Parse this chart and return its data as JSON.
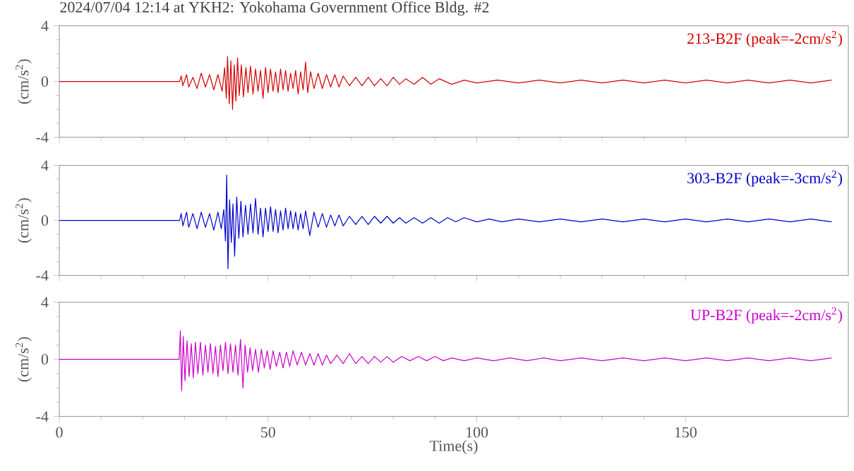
{
  "chart_data": [
    {
      "type": "line",
      "title": "2024/07/04 12:14 at YKH2: Yokohama Government Office Bldg. #2",
      "ylabel": "(cm/s$^{2}$)",
      "xlim": [
        0,
        189
      ],
      "xticks": [
        0,
        50,
        100,
        150
      ],
      "ylim": [
        -4,
        4
      ],
      "yticks": [
        -4,
        0,
        4
      ],
      "tick_labels": "y",
      "series": [
        {
          "name": "213-B2F (peak=-2cm/s$^{2}$)",
          "color": "#d40000",
          "x": [
            0,
            28.8,
            29.2,
            29.6,
            30.5,
            31,
            32,
            33,
            34,
            35,
            36,
            37,
            38,
            39,
            39.6,
            40.0,
            40.3,
            40.7,
            41.1,
            41.5,
            41.9,
            42.3,
            42.7,
            43.1,
            43.6,
            44.1,
            44.7,
            45.2,
            45.8,
            46.4,
            47,
            47.6,
            48.2,
            48.8,
            49.4,
            50,
            50.6,
            51.2,
            51.8,
            52.4,
            53,
            53.6,
            54.2,
            54.8,
            55.4,
            56,
            56.6,
            57.2,
            57.8,
            58.4,
            59.0,
            59.5,
            60.2,
            61,
            62,
            63,
            64,
            65,
            66,
            67,
            68,
            69.5,
            71,
            72.5,
            74,
            75.5,
            77,
            78.5,
            80,
            81.5,
            83,
            85,
            87,
            89,
            91,
            94,
            97,
            100,
            105,
            110,
            115,
            120,
            125,
            130,
            135,
            140,
            145,
            150,
            155,
            160,
            165,
            170,
            175,
            180,
            185
          ],
          "values": [
            0,
            0,
            0.4,
            -0.3,
            0.5,
            -0.4,
            0.3,
            -0.5,
            0.6,
            -0.4,
            0.5,
            -0.6,
            0.5,
            -0.7,
            1.0,
            -1.2,
            1.8,
            -1.6,
            1.5,
            -2.0,
            1.2,
            -1.4,
            1.7,
            -1.0,
            1.2,
            -1.1,
            1.0,
            -0.8,
            1.1,
            -0.9,
            0.9,
            -0.7,
            0.8,
            -1.2,
            1.0,
            -0.8,
            0.9,
            -0.7,
            0.7,
            -0.8,
            0.9,
            -0.6,
            0.8,
            -0.7,
            0.6,
            -0.5,
            0.8,
            -0.9,
            0.7,
            -0.6,
            1.4,
            -0.8,
            0.7,
            -0.5,
            0.6,
            -0.5,
            0.5,
            -0.4,
            0.5,
            -0.4,
            0.4,
            -0.3,
            0.3,
            -0.3,
            0.3,
            -0.3,
            0.2,
            -0.3,
            0.3,
            -0.2,
            0.2,
            -0.2,
            0.3,
            -0.2,
            0.2,
            -0.2,
            0.1,
            -0.1,
            0.1,
            -0.1,
            0.1,
            -0.1,
            0.1,
            -0.1,
            0.1,
            -0.1,
            0.1,
            -0.1,
            0.1,
            -0.1,
            0.1,
            -0.1,
            0.1,
            -0.1,
            0.1
          ]
        }
      ]
    },
    {
      "type": "line",
      "ylabel": "(cm/s$^{2}$)",
      "xlim": [
        0,
        189
      ],
      "xticks": [
        0,
        50,
        100,
        150
      ],
      "ylim": [
        -4,
        4
      ],
      "yticks": [
        -4,
        0,
        4
      ],
      "tick_labels": "y",
      "series": [
        {
          "name": "303-B2F (peak=-3cm/s$^{2}$)",
          "color": "#0000cc",
          "x": [
            0,
            28.8,
            29.2,
            29.6,
            30.5,
            31,
            32,
            33,
            34,
            35,
            36,
            37,
            38,
            38.8,
            39.4,
            39.8,
            40.1,
            40.4,
            40.8,
            41.2,
            41.6,
            42.0,
            42.5,
            43,
            43.5,
            44,
            44.6,
            45.2,
            45.8,
            46.4,
            47,
            47.6,
            48.2,
            48.8,
            49.4,
            50,
            50.6,
            51.2,
            51.8,
            52.4,
            53,
            53.6,
            54.2,
            54.8,
            55.4,
            56,
            56.6,
            57.2,
            57.8,
            58.4,
            59,
            60,
            61,
            62,
            63,
            64,
            65,
            66,
            67,
            68,
            69.5,
            71,
            72.5,
            74,
            75.5,
            77,
            78.5,
            80,
            81.5,
            83,
            85,
            87,
            89,
            91,
            93,
            95,
            97,
            100,
            103,
            106,
            110,
            115,
            120,
            125,
            130,
            135,
            140,
            145,
            150,
            155,
            160,
            165,
            170,
            175,
            180,
            185
          ],
          "values": [
            0,
            0,
            0.5,
            -0.4,
            0.6,
            -0.5,
            0.5,
            -0.6,
            0.6,
            -0.5,
            0.5,
            -0.7,
            0.6,
            -0.6,
            0.8,
            -1.5,
            3.3,
            -3.5,
            1.5,
            -1.6,
            1.2,
            -2.6,
            1.7,
            -1.3,
            1.4,
            -1.2,
            1.1,
            -1.0,
            1.2,
            -0.9,
            1.6,
            -1.0,
            0.9,
            -1.2,
            0.9,
            -0.8,
            1.0,
            -0.8,
            0.8,
            -0.9,
            0.7,
            -0.7,
            0.9,
            -0.6,
            0.7,
            -0.6,
            0.6,
            -0.7,
            0.5,
            -0.6,
            0.7,
            -1.1,
            0.6,
            -0.5,
            0.5,
            -0.5,
            0.4,
            -0.4,
            0.4,
            -0.4,
            0.3,
            -0.3,
            0.3,
            -0.3,
            0.3,
            -0.2,
            0.3,
            -0.2,
            0.2,
            -0.2,
            0.2,
            -0.2,
            0.2,
            -0.2,
            0.2,
            -0.1,
            0.2,
            -0.1,
            0.1,
            -0.1,
            0.1,
            -0.1,
            0.1,
            -0.1,
            0.1,
            -0.1,
            0.1,
            -0.1,
            0.1,
            -0.1,
            0.1,
            -0.1,
            0.1,
            -0.1,
            0.1,
            -0.1
          ]
        }
      ]
    },
    {
      "type": "line",
      "ylabel": "(cm/s$^{2}$)",
      "xlabel": "Time(s)",
      "xlim": [
        0,
        189
      ],
      "xticks": [
        0,
        50,
        100,
        150
      ],
      "ylim": [
        -4,
        4
      ],
      "yticks": [
        -4,
        0,
        4
      ],
      "series": [
        {
          "name": "UP-B2F (peak=-2cm/s$^{2}$)",
          "color": "#cc00cc",
          "x": [
            0,
            28.7,
            29.0,
            29.3,
            29.7,
            30.1,
            30.6,
            31.1,
            31.6,
            32.1,
            32.6,
            33.2,
            33.8,
            34.4,
            35,
            35.6,
            36.2,
            36.8,
            37.4,
            38,
            38.6,
            39.2,
            39.8,
            40.4,
            41,
            41.6,
            42.2,
            42.8,
            43.4,
            44,
            44.5,
            45.1,
            45.7,
            46.3,
            47,
            47.7,
            48.4,
            49.1,
            49.8,
            50.5,
            51.2,
            52,
            52.8,
            53.6,
            54.4,
            55.2,
            56,
            57,
            58,
            59,
            60,
            61,
            62,
            63,
            64,
            65,
            66.5,
            68,
            69.5,
            71,
            72.5,
            74,
            75.5,
            77,
            78.5,
            80,
            82,
            84,
            86,
            88,
            90,
            92,
            94,
            97,
            100,
            104,
            108,
            112,
            116,
            120,
            125,
            130,
            135,
            140,
            145,
            150,
            155,
            160,
            165,
            170,
            175,
            180,
            185
          ],
          "values": [
            0,
            0,
            2.0,
            -2.2,
            1.6,
            -1.5,
            1.3,
            -1.2,
            1.1,
            -1.3,
            1.2,
            -1.0,
            1.2,
            -1.1,
            1.0,
            -0.9,
            1.1,
            -1.0,
            0.9,
            -1.2,
            1.0,
            -0.8,
            1.2,
            -1.0,
            1.1,
            -0.9,
            1.0,
            -1.1,
            1.4,
            -2.0,
            1.0,
            -0.9,
            0.8,
            -0.8,
            0.7,
            -0.9,
            0.7,
            -0.6,
            0.6,
            -0.7,
            0.6,
            -0.5,
            0.5,
            -0.6,
            0.5,
            -0.5,
            0.6,
            -0.4,
            0.5,
            -0.4,
            0.4,
            -0.4,
            0.4,
            -0.4,
            0.3,
            -0.3,
            0.3,
            -0.3,
            0.4,
            -0.3,
            0.2,
            -0.3,
            0.2,
            -0.2,
            0.2,
            -0.2,
            0.2,
            -0.1,
            0.2,
            -0.1,
            0.2,
            -0.1,
            0.1,
            -0.1,
            0.1,
            -0.1,
            0.1,
            -0.1,
            0.1,
            -0.1,
            0.1,
            -0.1,
            0.1,
            -0.1,
            0.1,
            -0.1,
            0.1,
            -0.1,
            0.1,
            -0.1,
            0.1,
            -0.1,
            0.1
          ]
        }
      ]
    }
  ]
}
